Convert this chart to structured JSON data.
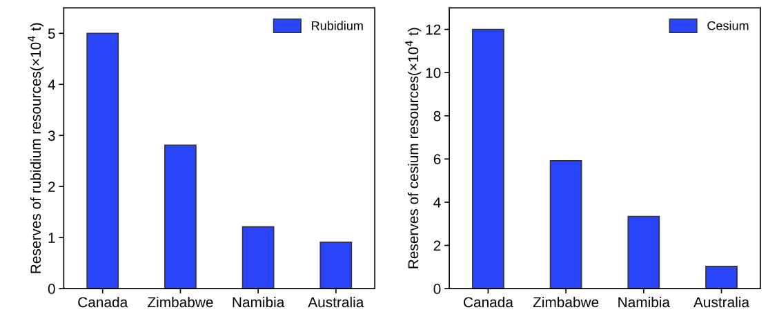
{
  "chart_data": [
    {
      "type": "bar",
      "categories": [
        "Canada",
        "Zimbabwe",
        "Namibia",
        "Australia"
      ],
      "ylabel": "Reserves of rubidium resources(×10$^{4}$ t)",
      "ylim": [
        0,
        5.5
      ],
      "yticks": [
        0,
        1,
        2,
        3,
        4,
        5
      ],
      "legend": "top right",
      "series": [
        {
          "name": "Rubidium",
          "color": "#2a44fa",
          "values": [
            5.0,
            2.81,
            1.21,
            0.91
          ]
        }
      ]
    },
    {
      "type": "bar",
      "categories": [
        "Canada",
        "Zimbabwe",
        "Namibia",
        "Australia"
      ],
      "ylabel": "Reserves of cesium resources(×10$^{4}$ t)",
      "ylim": [
        0,
        13
      ],
      "yticks": [
        0,
        2,
        4,
        6,
        8,
        10,
        12
      ],
      "legend": "top right",
      "series": [
        {
          "name": "Cesium",
          "color": "#2a44fa",
          "values": [
            12.0,
            5.92,
            3.34,
            1.03
          ]
        }
      ]
    }
  ]
}
